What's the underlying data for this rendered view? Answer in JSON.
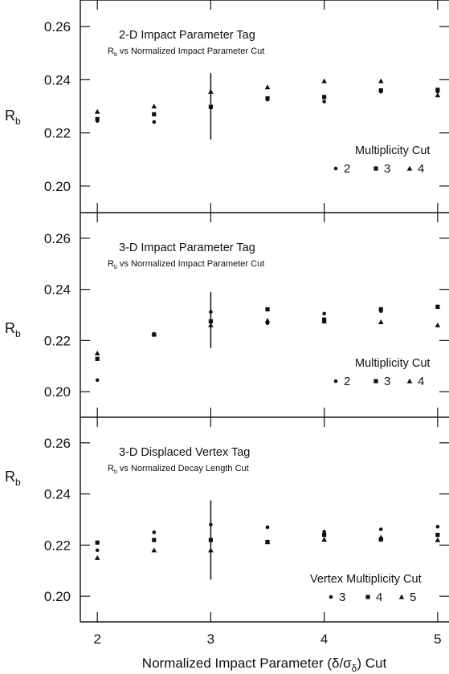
{
  "chart_data": [
    {
      "type": "scatter",
      "title": "2-D Impact Parameter Tag",
      "subtitle": "vs Normalized Impact Parameter Cut",
      "ylabel": "R",
      "subtitle_symbol": "R",
      "ylabel_sub": "b",
      "subtitle_symbol_sub": "b",
      "ylim": [
        0.19,
        0.27
      ],
      "yticks": [
        0.2,
        0.22,
        0.24,
        0.26
      ],
      "ytick_labels": [
        "0.20",
        "0.22",
        "0.24",
        "0.26"
      ],
      "legend_title": "Multiplicity Cut",
      "legend_position": "right",
      "series": [
        {
          "name": "2",
          "marker": "circle",
          "x": [
            2,
            2.5,
            3,
            3.5,
            4,
            4.5,
            5
          ],
          "y": [
            0.2245,
            0.2241,
            0.2295,
            0.2325,
            0.2318,
            0.2355,
            0.2355
          ]
        },
        {
          "name": "3",
          "marker": "square",
          "x": [
            2,
            2.5,
            3,
            3.5,
            4,
            4.5,
            5
          ],
          "y": [
            0.2252,
            0.227,
            0.2298,
            0.233,
            0.2335,
            0.236,
            0.2362
          ]
        },
        {
          "name": "4",
          "marker": "triangle",
          "x": [
            2,
            2.5,
            3,
            3.5,
            4,
            4.5,
            5
          ],
          "y": [
            0.228,
            0.23,
            0.2355,
            0.2372,
            0.2395,
            0.2395,
            0.2342
          ]
        }
      ],
      "error_bar": {
        "x": 3,
        "y": 0.2298,
        "low": 0.2175,
        "high": 0.2425
      }
    },
    {
      "type": "scatter",
      "title": "3-D Impact Parameter Tag",
      "subtitle": "vs Normalized Impact Parameter Cut",
      "ylabel": "R",
      "subtitle_symbol": "R",
      "ylabel_sub": "b",
      "subtitle_symbol_sub": "b",
      "ylim": [
        0.19,
        0.27
      ],
      "yticks": [
        0.2,
        0.22,
        0.24,
        0.26
      ],
      "ytick_labels": [
        "0.20",
        "0.22",
        "0.24",
        "0.26"
      ],
      "legend_title": "Multiplicity Cut",
      "legend_position": "right",
      "series": [
        {
          "name": "2",
          "marker": "circle",
          "x": [
            2,
            2.5,
            3,
            3.5,
            4,
            4.5,
            5
          ],
          "y": [
            0.2045,
            0.2225,
            0.2312,
            0.2268,
            0.2305,
            0.2315,
            0.233
          ]
        },
        {
          "name": "3",
          "marker": "square",
          "x": [
            2,
            2.5,
            3,
            3.5,
            4,
            4.5,
            5
          ],
          "y": [
            0.2128,
            0.2223,
            0.2275,
            0.2322,
            0.2282,
            0.2322,
            0.2332
          ]
        },
        {
          "name": "4",
          "marker": "triangle",
          "x": [
            2,
            2.5,
            3,
            3.5,
            4,
            4.5,
            5
          ],
          "y": [
            0.215,
            0.2225,
            0.226,
            0.2278,
            0.2275,
            0.2272,
            0.226
          ]
        }
      ],
      "error_bar": {
        "x": 3,
        "y": 0.2275,
        "low": 0.217,
        "high": 0.239
      }
    },
    {
      "type": "scatter",
      "title": "3-D Displaced Vertex Tag",
      "subtitle": "vs Normalized Decay Length Cut",
      "ylabel": "R",
      "subtitle_symbol": "R",
      "ylabel_sub": "b",
      "subtitle_symbol_sub": "b",
      "xlabel": "Normalized Impact Parameter (δ/σ",
      "xlabel_sub": "δ",
      "xlabel_tail": ") Cut",
      "xlim": [
        1.85,
        5.1
      ],
      "xticks": [
        2,
        3,
        4,
        5
      ],
      "xtick_labels": [
        "2",
        "3",
        "4",
        "5"
      ],
      "ylim": [
        0.19,
        0.27
      ],
      "yticks": [
        0.2,
        0.22,
        0.24,
        0.26
      ],
      "ytick_labels": [
        "0.20",
        "0.22",
        "0.24",
        "0.26"
      ],
      "legend_title": "Vertex Multiplicity Cut",
      "legend_position": "right",
      "series": [
        {
          "name": "3",
          "marker": "circle",
          "x": [
            2,
            2.5,
            3,
            3.5,
            4,
            4.5,
            5
          ],
          "y": [
            0.218,
            0.225,
            0.228,
            0.227,
            0.2252,
            0.2262,
            0.2272
          ]
        },
        {
          "name": "4",
          "marker": "square",
          "x": [
            2,
            2.5,
            3,
            3.5,
            4,
            4.5,
            5
          ],
          "y": [
            0.221,
            0.222,
            0.222,
            0.2212,
            0.224,
            0.2222,
            0.224
          ]
        },
        {
          "name": "5",
          "marker": "triangle",
          "x": [
            2,
            2.5,
            3,
            3.5,
            4,
            4.5,
            5
          ],
          "y": [
            0.215,
            0.218,
            0.218,
            0.2212,
            0.2222,
            0.223,
            0.222
          ]
        }
      ],
      "error_bar": {
        "x": 3,
        "y": 0.222,
        "low": 0.2065,
        "high": 0.2375
      }
    }
  ],
  "colors": {
    "ink": "#111111",
    "background": "#ffffff"
  }
}
